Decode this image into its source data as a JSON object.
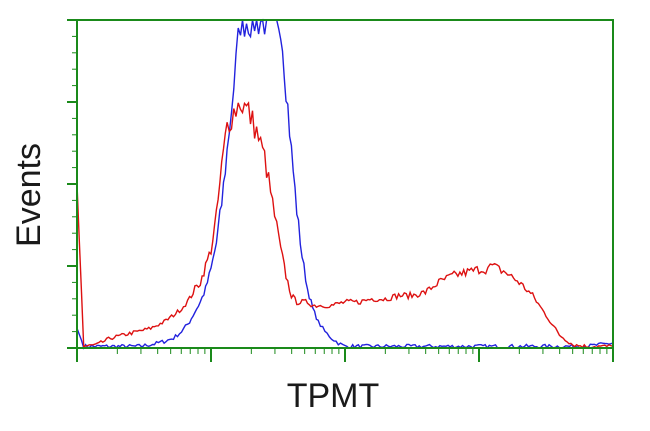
{
  "chart_data": {
    "type": "line",
    "xlabel": "TPMT",
    "ylabel": "Events",
    "xscale": "log",
    "xlim": [
      0,
      4
    ],
    "ylim": [
      0,
      100
    ],
    "x_major_ticks": [
      0,
      1,
      2,
      3,
      4
    ],
    "y_major_ticks": [
      0,
      25,
      50,
      75,
      100
    ],
    "grid": false,
    "legend": "none",
    "frame_color": "#1a8a1a",
    "series": [
      {
        "color": "#2222dd",
        "x": [
          0,
          0.05,
          0.15,
          0.25,
          0.35,
          0.45,
          0.55,
          0.65,
          0.72,
          0.78,
          0.84,
          0.88,
          0.92,
          0.96,
          1.0,
          1.04,
          1.08,
          1.12,
          1.17,
          1.22,
          1.28,
          1.34,
          1.4,
          1.46,
          1.52,
          1.56,
          1.6,
          1.64,
          1.68,
          1.72,
          1.76,
          1.8,
          1.85,
          1.9,
          1.95,
          2.0,
          2.1,
          2.2,
          2.4,
          2.6,
          2.8,
          3.0,
          3.2,
          3.4,
          3.6,
          3.8,
          4.0
        ],
        "values": [
          6,
          0.5,
          0.5,
          0.5,
          0.5,
          0.5,
          1,
          2,
          3,
          5,
          8,
          11,
          14,
          18,
          24,
          32,
          44,
          60,
          80,
          100,
          100,
          100,
          100,
          100,
          100,
          80,
          60,
          42,
          28,
          18,
          12,
          8,
          5,
          3,
          1.5,
          0.5,
          0.5,
          0.5,
          0.5,
          0.5,
          0.5,
          0.5,
          0.5,
          0.5,
          0.5,
          0.5,
          1.5
        ]
      },
      {
        "color": "#dd1111",
        "x": [
          0,
          0.05,
          0.15,
          0.25,
          0.35,
          0.45,
          0.55,
          0.65,
          0.72,
          0.78,
          0.84,
          0.88,
          0.92,
          0.96,
          1.0,
          1.04,
          1.08,
          1.12,
          1.17,
          1.22,
          1.28,
          1.34,
          1.4,
          1.46,
          1.52,
          1.56,
          1.6,
          1.64,
          1.68,
          1.72,
          1.76,
          1.8,
          1.85,
          1.9,
          2.0,
          2.1,
          2.2,
          2.3,
          2.4,
          2.5,
          2.6,
          2.7,
          2.8,
          2.9,
          3.0,
          3.05,
          3.1,
          3.15,
          3.2,
          3.3,
          3.4,
          3.5,
          3.6,
          3.7,
          3.8,
          4.0
        ],
        "values": [
          50,
          0.5,
          1,
          3,
          4,
          5,
          6,
          8,
          10,
          12,
          15,
          18,
          20,
          25,
          30,
          40,
          55,
          68,
          72,
          75,
          72,
          66,
          58,
          44,
          30,
          22,
          16,
          14,
          14,
          14,
          13,
          13,
          13,
          13,
          14,
          14,
          15,
          15,
          16,
          16,
          17,
          20,
          22,
          23,
          24,
          24,
          25,
          24,
          23,
          20,
          16,
          10,
          4,
          1,
          0.5,
          0.5
        ]
      }
    ]
  }
}
